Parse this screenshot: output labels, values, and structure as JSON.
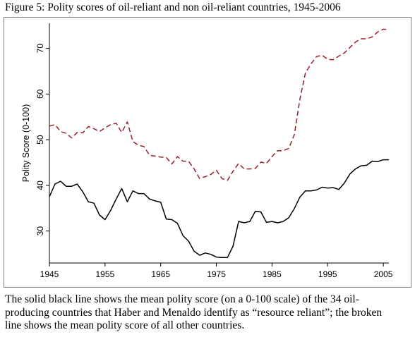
{
  "figure": {
    "title": "Figure 5: Polity scores of oil-reliant and non oil-reliant countries, 1945-2006"
  },
  "caption": [
    "The solid black line shows the mean polity score (on a 0-100 scale) of the 34 oil-",
    "producing countries that Haber and Menaldo identify as “resource reliant”; the broken",
    "line shows the mean polity score of all other countries."
  ],
  "chart_data": {
    "type": "line",
    "title": "",
    "xlabel": "",
    "ylabel": "Polity Score (0-100)",
    "xlim": [
      1945,
      2006
    ],
    "ylim": [
      23,
      75.5
    ],
    "xticks": [
      1945,
      1955,
      1965,
      1975,
      1985,
      1995,
      2005
    ],
    "yticks": [
      30,
      40,
      50,
      60,
      70
    ],
    "grid": false,
    "legend": "none",
    "series": [
      {
        "style": "solid",
        "color": "#000000",
        "x": [
          1945,
          1946,
          1947,
          1948,
          1949,
          1950,
          1951,
          1952,
          1953,
          1954,
          1955,
          1956,
          1957,
          1958,
          1959,
          1960,
          1961,
          1962,
          1963,
          1964,
          1965,
          1966,
          1967,
          1968,
          1969,
          1970,
          1971,
          1972,
          1973,
          1974,
          1975,
          1976,
          1977,
          1978,
          1979,
          1980,
          1981,
          1982,
          1983,
          1984,
          1985,
          1986,
          1987,
          1988,
          1989,
          1990,
          1991,
          1992,
          1993,
          1994,
          1995,
          1996,
          1997,
          1998,
          1999,
          2000,
          2001,
          2002,
          2003,
          2004,
          2005,
          2006
        ],
        "values": [
          37.5,
          40.3,
          40.9,
          39.8,
          39.8,
          40.3,
          38.6,
          36.4,
          36.1,
          33.5,
          32.5,
          34.5,
          37.0,
          39.3,
          36.4,
          38.8,
          38.2,
          38.2,
          37.0,
          36.6,
          36.3,
          32.6,
          32.5,
          31.7,
          29.0,
          27.8,
          25.6,
          24.7,
          25.2,
          24.9,
          24.3,
          24.2,
          24.2,
          26.7,
          32.1,
          31.8,
          32.1,
          34.3,
          34.2,
          31.9,
          32.1,
          31.8,
          32.1,
          32.9,
          34.9,
          37.4,
          38.8,
          38.8,
          39.0,
          39.6,
          39.4,
          39.5,
          39.1,
          40.5,
          42.5,
          43.6,
          44.3,
          44.4,
          45.3,
          45.2,
          45.6,
          45.6
        ]
      },
      {
        "style": "dashed",
        "color": "#9a1f2a",
        "x": [
          1945,
          1946,
          1947,
          1948,
          1949,
          1950,
          1951,
          1952,
          1953,
          1954,
          1955,
          1956,
          1957,
          1958,
          1959,
          1960,
          1961,
          1962,
          1963,
          1964,
          1965,
          1966,
          1967,
          1968,
          1969,
          1970,
          1971,
          1972,
          1973,
          1974,
          1975,
          1976,
          1977,
          1978,
          1979,
          1980,
          1981,
          1982,
          1983,
          1984,
          1985,
          1986,
          1987,
          1988,
          1989,
          1990,
          1991,
          1992,
          1993,
          1994,
          1995,
          1996,
          1997,
          1998,
          1999,
          2000,
          2001,
          2002,
          2003,
          2004,
          2005,
          2006
        ],
        "values": [
          53.0,
          53.3,
          51.8,
          51.4,
          50.4,
          51.6,
          51.5,
          52.9,
          52.4,
          51.8,
          52.6,
          53.3,
          53.6,
          51.6,
          53.9,
          49.6,
          48.8,
          48.5,
          46.6,
          46.4,
          46.2,
          46.1,
          44.7,
          46.3,
          45.3,
          45.3,
          43.6,
          41.5,
          41.9,
          42.4,
          43.3,
          41.5,
          41.1,
          43.1,
          44.8,
          43.6,
          43.6,
          43.7,
          45.1,
          44.8,
          46.3,
          47.6,
          47.6,
          48.1,
          51.1,
          58.8,
          64.6,
          66.6,
          68.2,
          68.5,
          67.6,
          67.5,
          68.3,
          69.0,
          70.2,
          71.4,
          72.1,
          72.1,
          72.5,
          73.6,
          74.2,
          74.1
        ]
      }
    ]
  }
}
